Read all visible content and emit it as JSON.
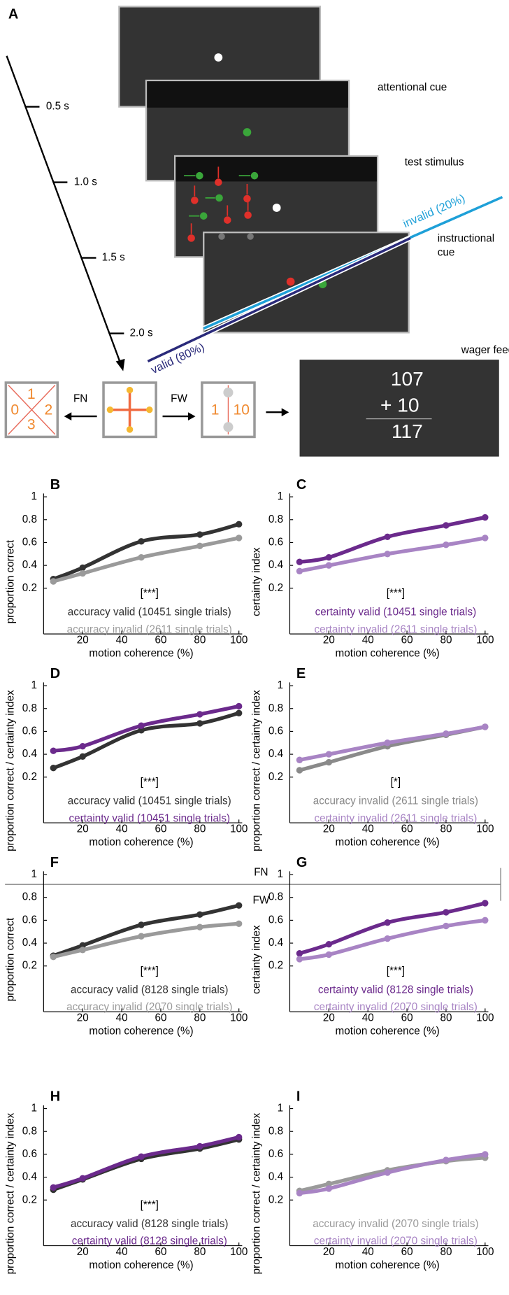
{
  "diagram": {
    "label": "A",
    "timeline": [
      "0.5 s",
      "1.0 s",
      "1.5 s",
      "2.0 s"
    ],
    "screens": [
      "attentional cue",
      "test stimulus",
      "wager feedback"
    ],
    "instructional_cue": [
      "instructional",
      "cue"
    ],
    "cues": {
      "invalid": "invalid (20%)",
      "valid": "valid (80%)"
    },
    "choices": {
      "fn": "FN",
      "fw": "FW",
      "fn_digits": [
        "1",
        "0",
        "2",
        "3"
      ],
      "fw_digits": [
        "1",
        "10"
      ]
    },
    "feedback": {
      "previous": "107",
      "wager": "+ 10",
      "total": "117"
    },
    "divider": {
      "fn": "FN",
      "fw": "FW"
    }
  },
  "chart_data": [
    {
      "type": "line",
      "label": "B",
      "ylabel": "proportion correct",
      "xlabel": "motion coherence (%)",
      "annotation": "[***]",
      "xlim": [
        0,
        100
      ],
      "ylim": [
        -0.2,
        1
      ],
      "xticks": [
        20,
        40,
        60,
        80,
        100
      ],
      "yticks": [
        0.2,
        0.4,
        0.6,
        0.8,
        1
      ],
      "x": [
        5,
        20,
        50,
        80,
        100
      ],
      "series": [
        {
          "name": "accuracy valid (10451 single trials)",
          "color": "#333333",
          "values": [
            0.28,
            0.38,
            0.61,
            0.67,
            0.76
          ]
        },
        {
          "name": "accuracy invalid (2611 single trials)",
          "color": "#9a9a9a",
          "values": [
            0.26,
            0.33,
            0.47,
            0.57,
            0.64
          ]
        }
      ]
    },
    {
      "type": "line",
      "label": "C",
      "ylabel": "certainty index",
      "xlabel": "motion coherence (%)",
      "annotation": "[***]",
      "xlim": [
        0,
        100
      ],
      "ylim": [
        -0.2,
        1
      ],
      "xticks": [
        20,
        40,
        60,
        80,
        100
      ],
      "yticks": [
        0.2,
        0.4,
        0.6,
        0.8,
        1
      ],
      "x": [
        5,
        20,
        50,
        80,
        100
      ],
      "series": [
        {
          "name": "certainty valid (10451 single trials)",
          "color": "#6b2a8c",
          "values": [
            0.43,
            0.47,
            0.65,
            0.75,
            0.82
          ]
        },
        {
          "name": "certainty invalid (2611 single trials)",
          "color": "#a884c4",
          "values": [
            0.35,
            0.4,
            0.5,
            0.58,
            0.64
          ]
        }
      ]
    },
    {
      "type": "line",
      "label": "D",
      "ylabel": "proportion correct / certainty index",
      "xlabel": "motion coherence (%)",
      "annotation": "[***]",
      "xlim": [
        0,
        100
      ],
      "ylim": [
        -0.2,
        1
      ],
      "xticks": [
        20,
        40,
        60,
        80,
        100
      ],
      "yticks": [
        0.2,
        0.4,
        0.6,
        0.8,
        1
      ],
      "x": [
        5,
        20,
        50,
        80,
        100
      ],
      "series": [
        {
          "name": "accuracy valid (10451 single trials)",
          "color": "#333333",
          "values": [
            0.28,
            0.38,
            0.61,
            0.67,
            0.76
          ]
        },
        {
          "name": "certainty valid (10451 single trials)",
          "color": "#6b2a8c",
          "values": [
            0.43,
            0.47,
            0.65,
            0.75,
            0.82
          ]
        }
      ]
    },
    {
      "type": "line",
      "label": "E",
      "ylabel": "proportion correct / certainty index",
      "xlabel": "motion coherence (%)",
      "annotation": "[*]",
      "xlim": [
        0,
        100
      ],
      "ylim": [
        -0.2,
        1
      ],
      "xticks": [
        20,
        40,
        60,
        80,
        100
      ],
      "yticks": [
        0.2,
        0.4,
        0.6,
        0.8,
        1
      ],
      "x": [
        5,
        20,
        50,
        80,
        100
      ],
      "series": [
        {
          "name": "accuracy invalid (2611 single trials)",
          "color": "#8a8a8a",
          "values": [
            0.26,
            0.33,
            0.47,
            0.57,
            0.64
          ]
        },
        {
          "name": "certainty invalid (2611 single trials)",
          "color": "#a884c4",
          "values": [
            0.35,
            0.4,
            0.5,
            0.58,
            0.64
          ]
        }
      ]
    },
    {
      "type": "line",
      "label": "F",
      "ylabel": "proportion correct",
      "xlabel": "motion coherence (%)",
      "annotation": "[***]",
      "xlim": [
        0,
        100
      ],
      "ylim": [
        -0.2,
        1
      ],
      "xticks": [
        20,
        40,
        60,
        80,
        100
      ],
      "yticks": [
        0.2,
        0.4,
        0.6,
        0.8,
        1
      ],
      "x": [
        5,
        20,
        50,
        80,
        100
      ],
      "series": [
        {
          "name": "accuracy valid (8128 single trials)",
          "color": "#333333",
          "values": [
            0.29,
            0.38,
            0.56,
            0.65,
            0.73
          ]
        },
        {
          "name": "accuracy invalid (2070 single trials)",
          "color": "#9a9a9a",
          "values": [
            0.28,
            0.34,
            0.46,
            0.54,
            0.57
          ]
        }
      ]
    },
    {
      "type": "line",
      "label": "G",
      "ylabel": "certainty index",
      "xlabel": "motion coherence (%)",
      "annotation": "[***]",
      "xlim": [
        0,
        100
      ],
      "ylim": [
        -0.2,
        1
      ],
      "xticks": [
        20,
        40,
        60,
        80,
        100
      ],
      "yticks": [
        0.2,
        0.4,
        0.6,
        0.8,
        1
      ],
      "x": [
        5,
        20,
        50,
        80,
        100
      ],
      "series": [
        {
          "name": "certainty valid (8128 single trials)",
          "color": "#6b2a8c",
          "values": [
            0.31,
            0.39,
            0.58,
            0.67,
            0.75
          ]
        },
        {
          "name": "certainty invalid (2070 single trials)",
          "color": "#a884c4",
          "values": [
            0.26,
            0.3,
            0.44,
            0.55,
            0.6
          ]
        }
      ]
    },
    {
      "type": "line",
      "label": "H",
      "ylabel": "proportion correct / certainty index",
      "xlabel": "motion coherence (%)",
      "annotation": "[***]",
      "xlim": [
        0,
        100
      ],
      "ylim": [
        -0.2,
        1
      ],
      "xticks": [
        20,
        40,
        60,
        80,
        100
      ],
      "yticks": [
        0.2,
        0.4,
        0.6,
        0.8,
        1
      ],
      "x": [
        5,
        20,
        50,
        80,
        100
      ],
      "series": [
        {
          "name": "accuracy valid (8128 single trials)",
          "color": "#333333",
          "values": [
            0.29,
            0.38,
            0.56,
            0.65,
            0.73
          ]
        },
        {
          "name": "certainty valid (8128 single trials)",
          "color": "#6b2a8c",
          "values": [
            0.31,
            0.39,
            0.58,
            0.67,
            0.75
          ]
        }
      ]
    },
    {
      "type": "line",
      "label": "I",
      "ylabel": "proportion correct / certainty index",
      "xlabel": "motion coherence (%)",
      "annotation": "",
      "xlim": [
        0,
        100
      ],
      "ylim": [
        -0.2,
        1
      ],
      "xticks": [
        20,
        40,
        60,
        80,
        100
      ],
      "yticks": [
        0.2,
        0.4,
        0.6,
        0.8,
        1
      ],
      "x": [
        5,
        20,
        50,
        80,
        100
      ],
      "series": [
        {
          "name": "accuracy invalid (2070 single trials)",
          "color": "#9a9a9a",
          "values": [
            0.28,
            0.34,
            0.46,
            0.54,
            0.57
          ]
        },
        {
          "name": "certainty invalid (2070 single trials)",
          "color": "#a884c4",
          "values": [
            0.26,
            0.3,
            0.44,
            0.55,
            0.6
          ]
        }
      ]
    }
  ]
}
